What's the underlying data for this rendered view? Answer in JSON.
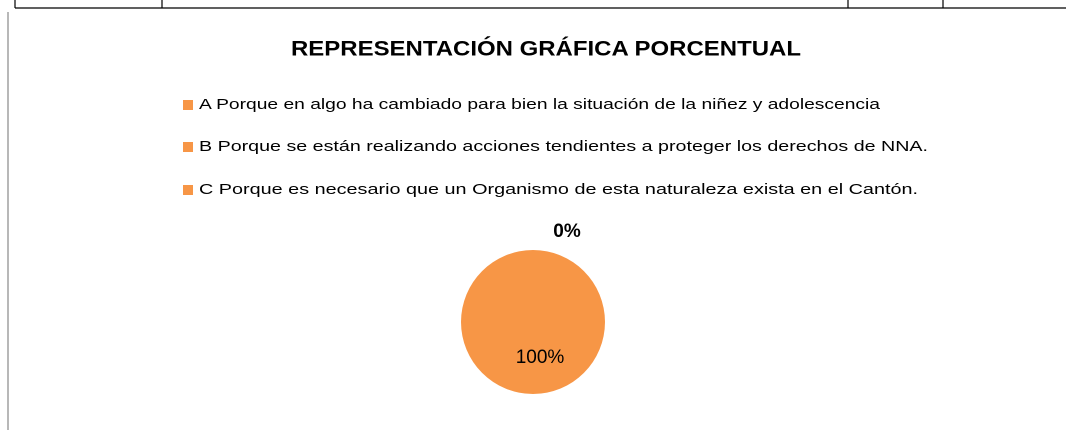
{
  "chart_data": {
    "type": "pie",
    "title": "REPRESENTACIÓN GRÁFICA PORCENTUAL",
    "categories": [
      "A Porque en algo ha cambiado para bien la situación de la niñez y adolescencia",
      "B Porque se están realizando acciones tendientes a proteger los derechos de NNA.",
      "C Porque es necesario que un Organismo de esta naturaleza exista en el Cantón."
    ],
    "values": [
      100,
      0,
      0
    ],
    "value_labels": [
      "100%",
      "0%",
      null
    ],
    "colors": [
      "#F79646",
      "#F79646",
      "#F79646"
    ]
  }
}
